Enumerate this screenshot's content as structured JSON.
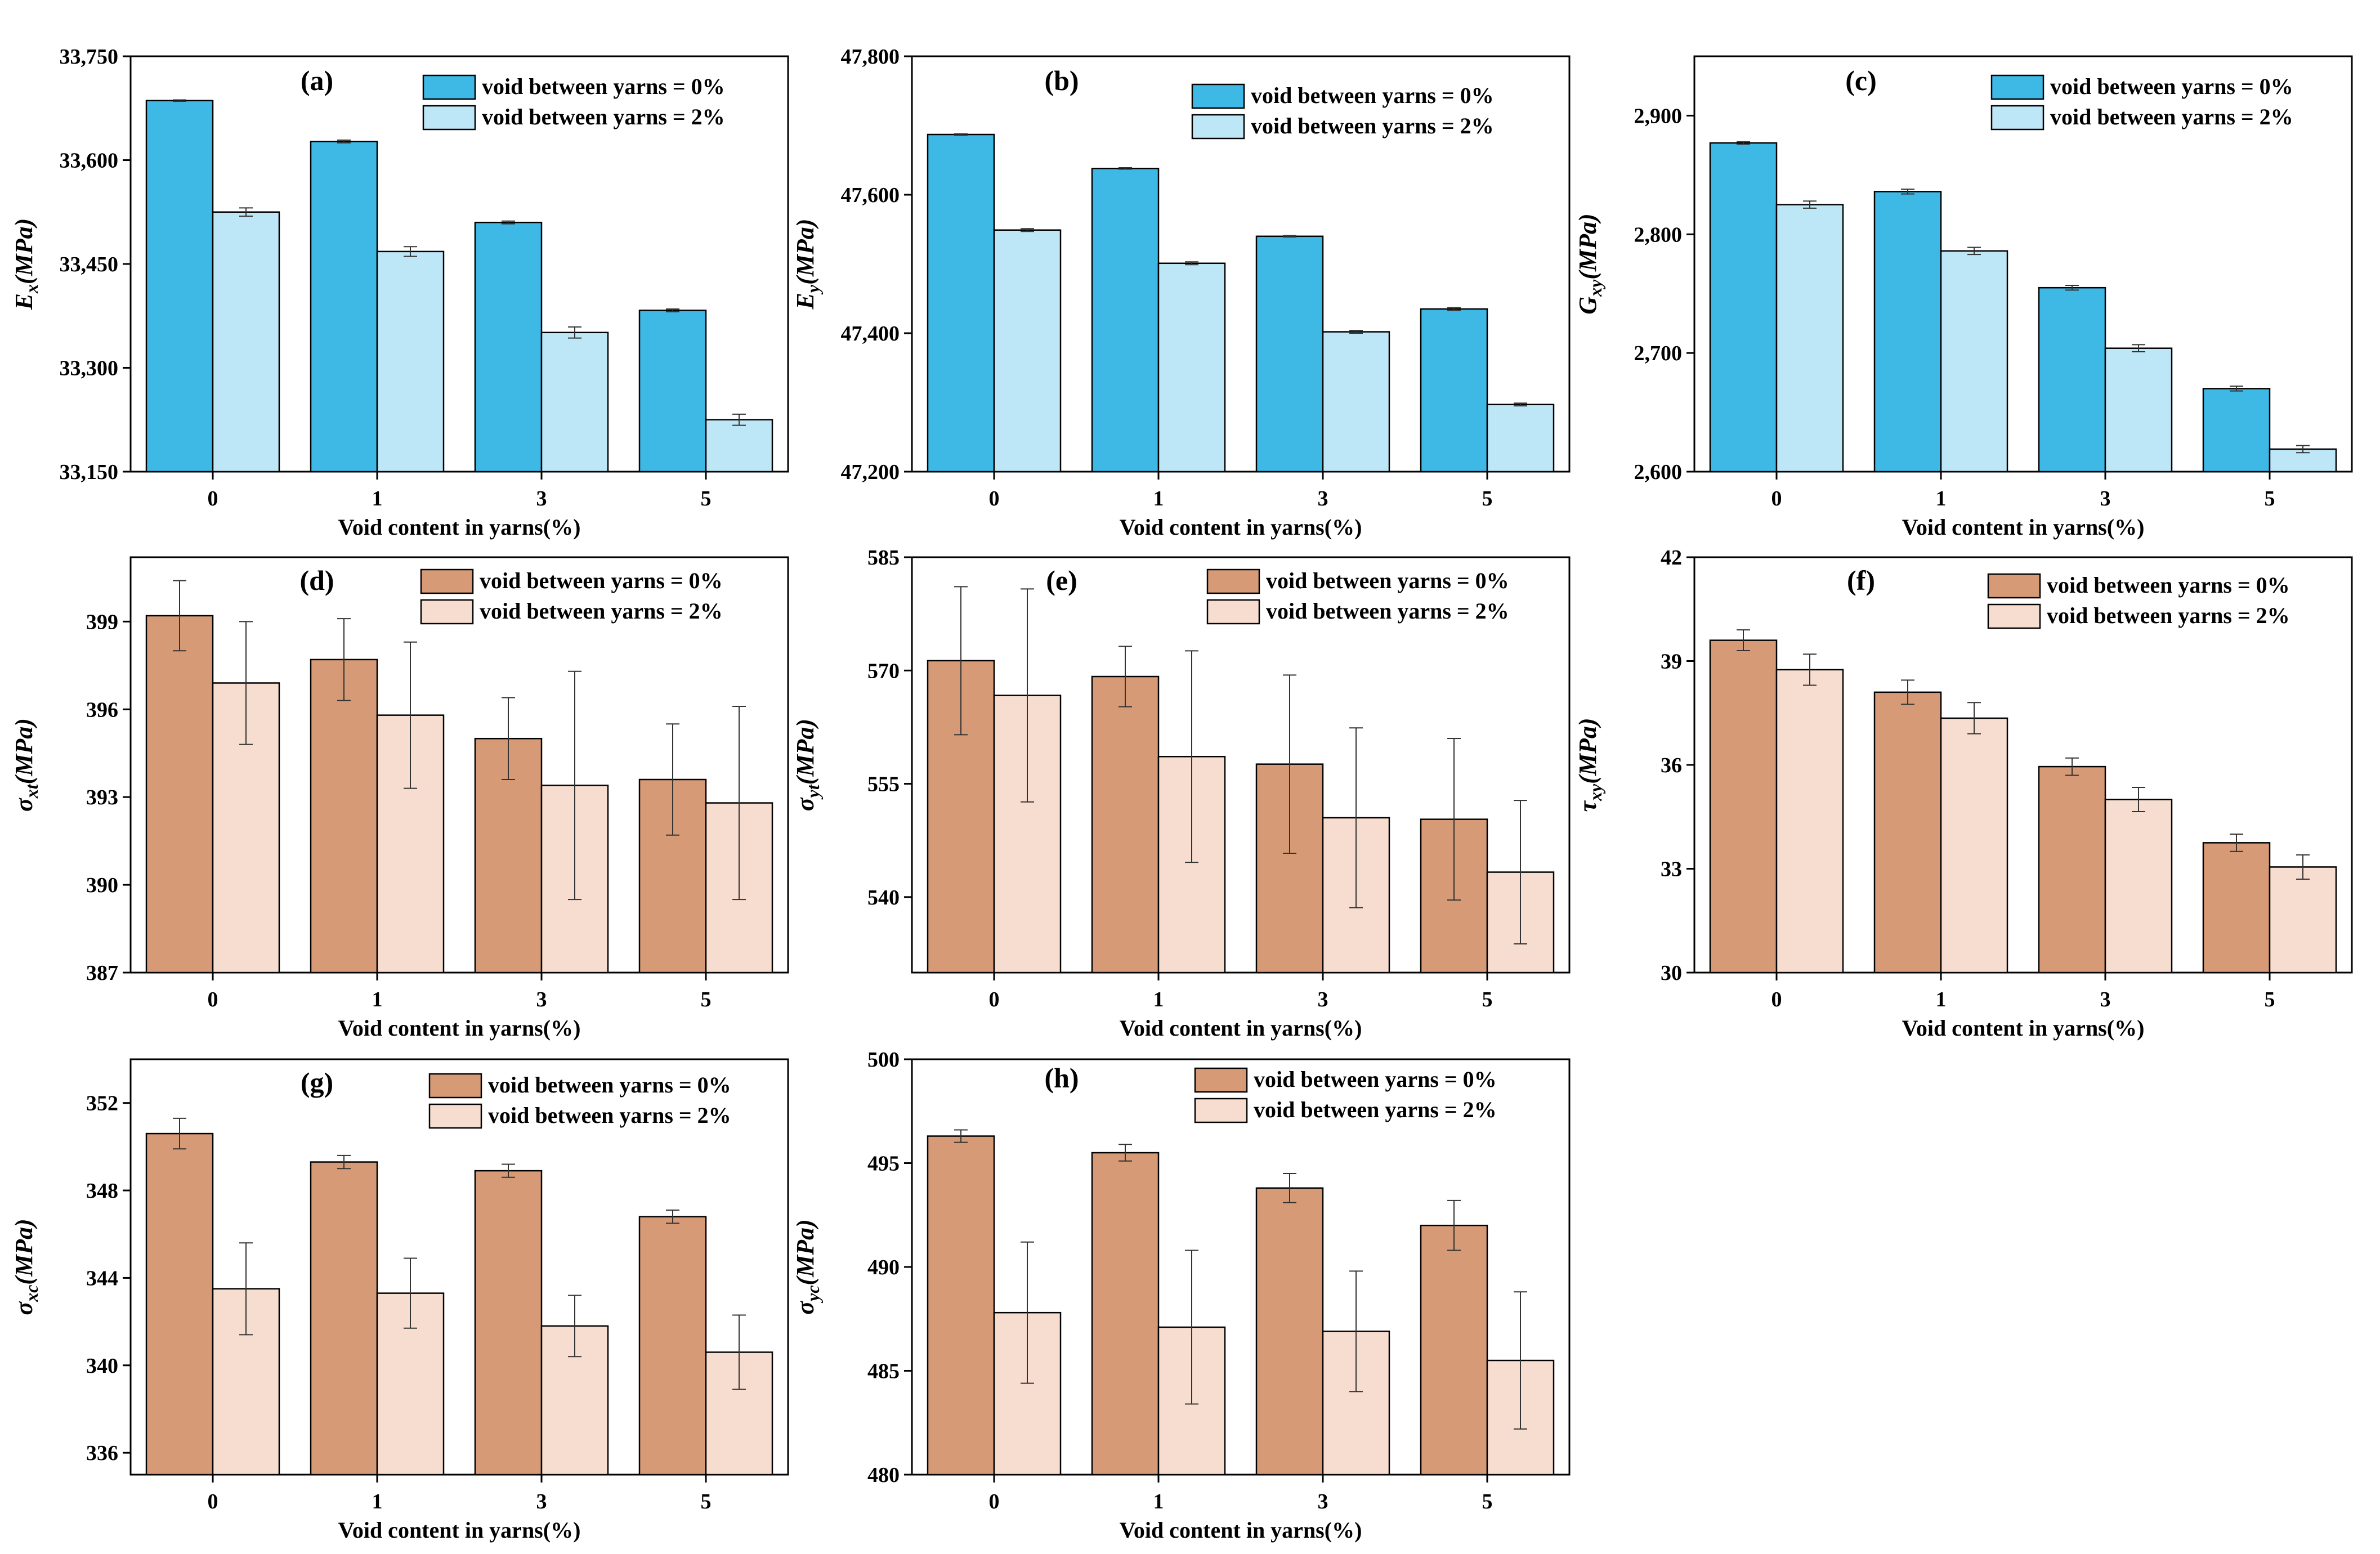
{
  "colors": {
    "stiffness_0": "#3EB8E5",
    "stiffness_2": "#BDE6F6",
    "strength_0": "#D69A76",
    "strength_2": "#F7DDCF",
    "axis": "#000000",
    "errorbar": "#333333"
  },
  "chart_data": [
    {
      "panel": "(a)",
      "type": "bar",
      "ylabel_main": "E",
      "ylabel_sub": "x",
      "ylabel_unit": "(MPa)",
      "xlabel": "Void content in yarns(%)",
      "categories": [
        "0",
        "1",
        "3",
        "5"
      ],
      "ylim": [
        33150,
        33750
      ],
      "yticks": [
        33150,
        33300,
        33450,
        33600,
        33750
      ],
      "ytick_labels": [
        "33,150",
        "33,300",
        "33,450",
        "33,600",
        "33,750"
      ],
      "palette": "stiffness",
      "series": [
        {
          "name": "void between yarns = 0%",
          "values": [
            33686,
            33627,
            33510,
            33383
          ],
          "errors": [
            1,
            2,
            2,
            2
          ]
        },
        {
          "name": "void between yarns = 2%",
          "values": [
            33525,
            33468,
            33351,
            33225
          ],
          "errors": [
            6,
            7,
            8,
            8
          ]
        }
      ]
    },
    {
      "panel": "(b)",
      "type": "bar",
      "ylabel_main": "E",
      "ylabel_sub": "y",
      "ylabel_unit": "(MPa)",
      "xlabel": "Void content in yarns(%)",
      "categories": [
        "0",
        "1",
        "3",
        "5"
      ],
      "ylim": [
        47200,
        47800
      ],
      "yticks": [
        47200,
        47400,
        47600,
        47800
      ],
      "ytick_labels": [
        "47,200",
        "47,400",
        "47,600",
        "47,800"
      ],
      "palette": "stiffness",
      "series": [
        {
          "name": "void between yarns = 0%",
          "values": [
            47687,
            47638,
            47540,
            47435
          ],
          "errors": [
            1,
            1,
            1,
            2
          ]
        },
        {
          "name": "void between yarns = 2%",
          "values": [
            47549,
            47501,
            47402,
            47297
          ],
          "errors": [
            2,
            2,
            2,
            2
          ]
        }
      ]
    },
    {
      "panel": "(c)",
      "type": "bar",
      "ylabel_main": "G",
      "ylabel_sub": "xy",
      "ylabel_unit": "(MPa)",
      "xlabel": "Void content in yarns(%)",
      "categories": [
        "0",
        "1",
        "3",
        "5"
      ],
      "ylim": [
        2600,
        2950
      ],
      "yticks": [
        2600,
        2700,
        2800,
        2900
      ],
      "ytick_labels": [
        "2,600",
        "2,700",
        "2,800",
        "2,900"
      ],
      "palette": "stiffness",
      "series": [
        {
          "name": "void between yarns = 0%",
          "values": [
            2877,
            2836,
            2755,
            2670
          ],
          "errors": [
            1,
            2,
            2,
            2
          ]
        },
        {
          "name": "void between yarns = 2%",
          "values": [
            2825,
            2786,
            2704,
            2619
          ],
          "errors": [
            3,
            3,
            3,
            3
          ]
        }
      ]
    },
    {
      "panel": "(d)",
      "type": "bar",
      "ylabel_main": "σ",
      "ylabel_sub": "xt",
      "ylabel_unit": "(MPa)",
      "xlabel": "Void content in yarns(%)",
      "categories": [
        "0",
        "1",
        "3",
        "5"
      ],
      "ylim": [
        387,
        401.2
      ],
      "yticks": [
        387,
        390,
        393,
        396,
        399
      ],
      "ytick_labels": [
        "387",
        "390",
        "393",
        "396",
        "399"
      ],
      "palette": "strength",
      "series": [
        {
          "name": "void between yarns = 0%",
          "values": [
            399.2,
            397.7,
            395.0,
            393.6
          ],
          "errors": [
            1.2,
            1.4,
            1.4,
            1.9
          ]
        },
        {
          "name": "void between yarns = 2%",
          "values": [
            396.9,
            395.8,
            393.4,
            392.8
          ],
          "errors": [
            2.1,
            2.5,
            3.9,
            3.3
          ]
        }
      ]
    },
    {
      "panel": "(e)",
      "type": "bar",
      "ylabel_main": "σ",
      "ylabel_sub": "yt",
      "ylabel_unit": "(MPa)",
      "xlabel": "Void content in yarns(%)",
      "categories": [
        "0",
        "1",
        "3",
        "5"
      ],
      "ylim": [
        530,
        585
      ],
      "yticks": [
        540,
        555,
        570,
        585
      ],
      "ytick_labels": [
        "540",
        "555",
        "570",
        "585"
      ],
      "palette": "strength",
      "series": [
        {
          "name": "void between yarns = 0%",
          "values": [
            571.3,
            569.2,
            557.6,
            550.3
          ],
          "errors": [
            9.8,
            4.0,
            11.8,
            10.7
          ]
        },
        {
          "name": "void between yarns = 2%",
          "values": [
            566.7,
            558.6,
            550.5,
            543.3
          ],
          "errors": [
            14.1,
            14.0,
            11.9,
            9.5
          ]
        }
      ]
    },
    {
      "panel": "(f)",
      "type": "bar",
      "ylabel_main": "τ",
      "ylabel_sub": "xy",
      "ylabel_unit": "(MPa)",
      "xlabel": "Void content in yarns(%)",
      "categories": [
        "0",
        "1",
        "3",
        "5"
      ],
      "ylim": [
        30,
        42
      ],
      "yticks": [
        30,
        33,
        36,
        39,
        42
      ],
      "ytick_labels": [
        "30",
        "33",
        "36",
        "39",
        "42"
      ],
      "palette": "strength",
      "series": [
        {
          "name": "void between yarns = 0%",
          "values": [
            39.6,
            38.1,
            35.95,
            33.75
          ],
          "errors": [
            0.3,
            0.35,
            0.25,
            0.25
          ]
        },
        {
          "name": "void between yarns = 2%",
          "values": [
            38.75,
            37.35,
            35.0,
            33.05
          ],
          "errors": [
            0.45,
            0.45,
            0.35,
            0.35
          ]
        }
      ]
    },
    {
      "panel": "(g)",
      "type": "bar",
      "ylabel_main": "σ",
      "ylabel_sub": "xc",
      "ylabel_unit": "(MPa)",
      "xlabel": "Void content in yarns(%)",
      "categories": [
        "0",
        "1",
        "3",
        "5"
      ],
      "ylim": [
        335,
        354
      ],
      "yticks": [
        336,
        340,
        344,
        348,
        352
      ],
      "ytick_labels": [
        "336",
        "340",
        "344",
        "348",
        "352"
      ],
      "palette": "strength",
      "series": [
        {
          "name": "void between yarns = 0%",
          "values": [
            350.6,
            349.3,
            348.9,
            346.8
          ],
          "errors": [
            0.7,
            0.3,
            0.3,
            0.3
          ]
        },
        {
          "name": "void between yarns = 2%",
          "values": [
            343.5,
            343.3,
            341.8,
            340.6
          ],
          "errors": [
            2.1,
            1.6,
            1.4,
            1.7
          ]
        }
      ]
    },
    {
      "panel": "(h)",
      "type": "bar",
      "ylabel_main": "σ",
      "ylabel_sub": "yc",
      "ylabel_unit": "(MPa)",
      "xlabel": "Void content in yarns(%)",
      "categories": [
        "0",
        "1",
        "3",
        "5"
      ],
      "ylim": [
        480,
        500
      ],
      "yticks": [
        480,
        485,
        490,
        495,
        500
      ],
      "ytick_labels": [
        "480",
        "485",
        "490",
        "495",
        "500"
      ],
      "palette": "strength",
      "series": [
        {
          "name": "void between yarns = 0%",
          "values": [
            496.3,
            495.5,
            493.8,
            492.0
          ],
          "errors": [
            0.3,
            0.4,
            0.7,
            1.2
          ]
        },
        {
          "name": "void between yarns = 2%",
          "values": [
            487.8,
            487.1,
            486.9,
            485.5
          ],
          "errors": [
            3.4,
            3.7,
            2.9,
            3.3
          ]
        }
      ]
    }
  ]
}
